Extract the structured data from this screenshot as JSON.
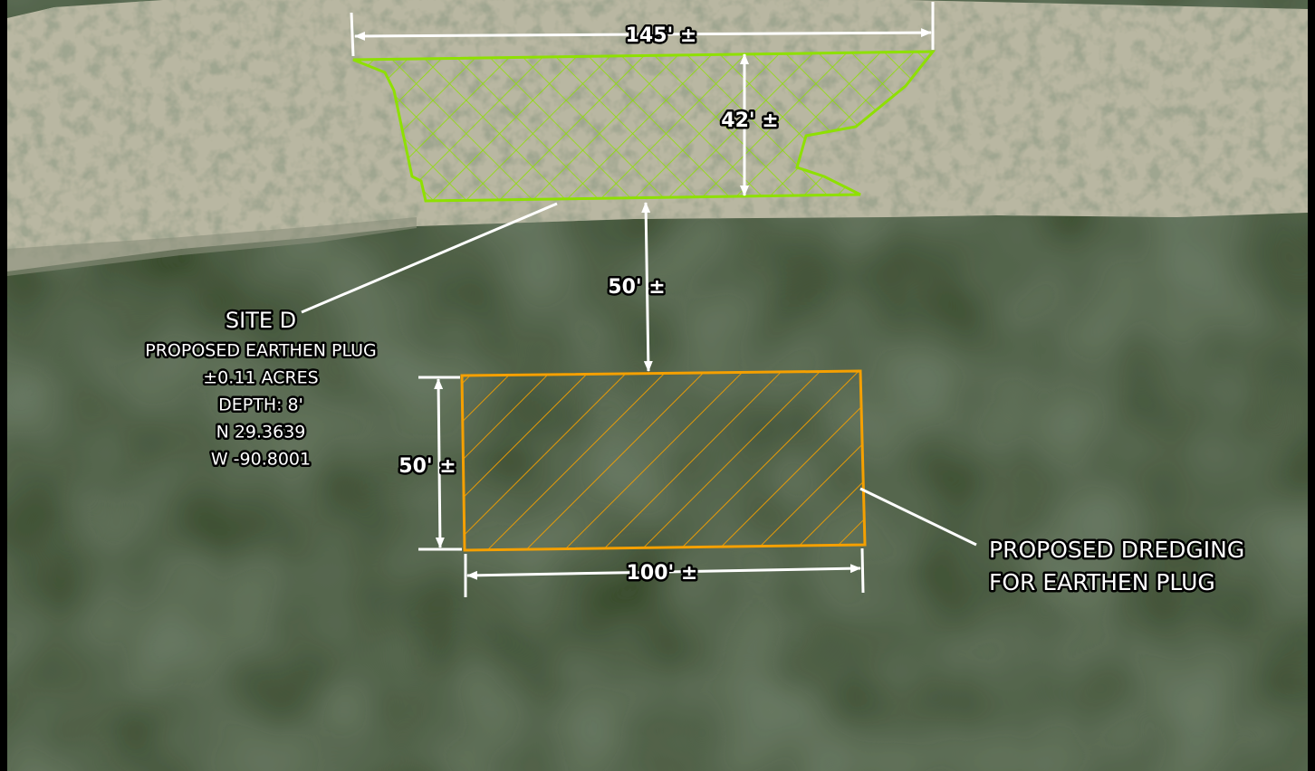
{
  "dimensions": {
    "plug_width": "145' ±",
    "plug_depth": "42' ±",
    "separation": "50' ±",
    "dredge_height": "50' ±",
    "dredge_width": "100' ±"
  },
  "site_label": {
    "title": "SITE D",
    "lines": [
      "PROPOSED EARTHEN PLUG",
      "±0.11 ACRES",
      "DEPTH: 8'",
      "N 29.3639",
      "W -90.8001"
    ]
  },
  "dredge_label": {
    "lines": [
      "PROPOSED DREDGING",
      "FOR EARTHEN PLUG"
    ]
  }
}
